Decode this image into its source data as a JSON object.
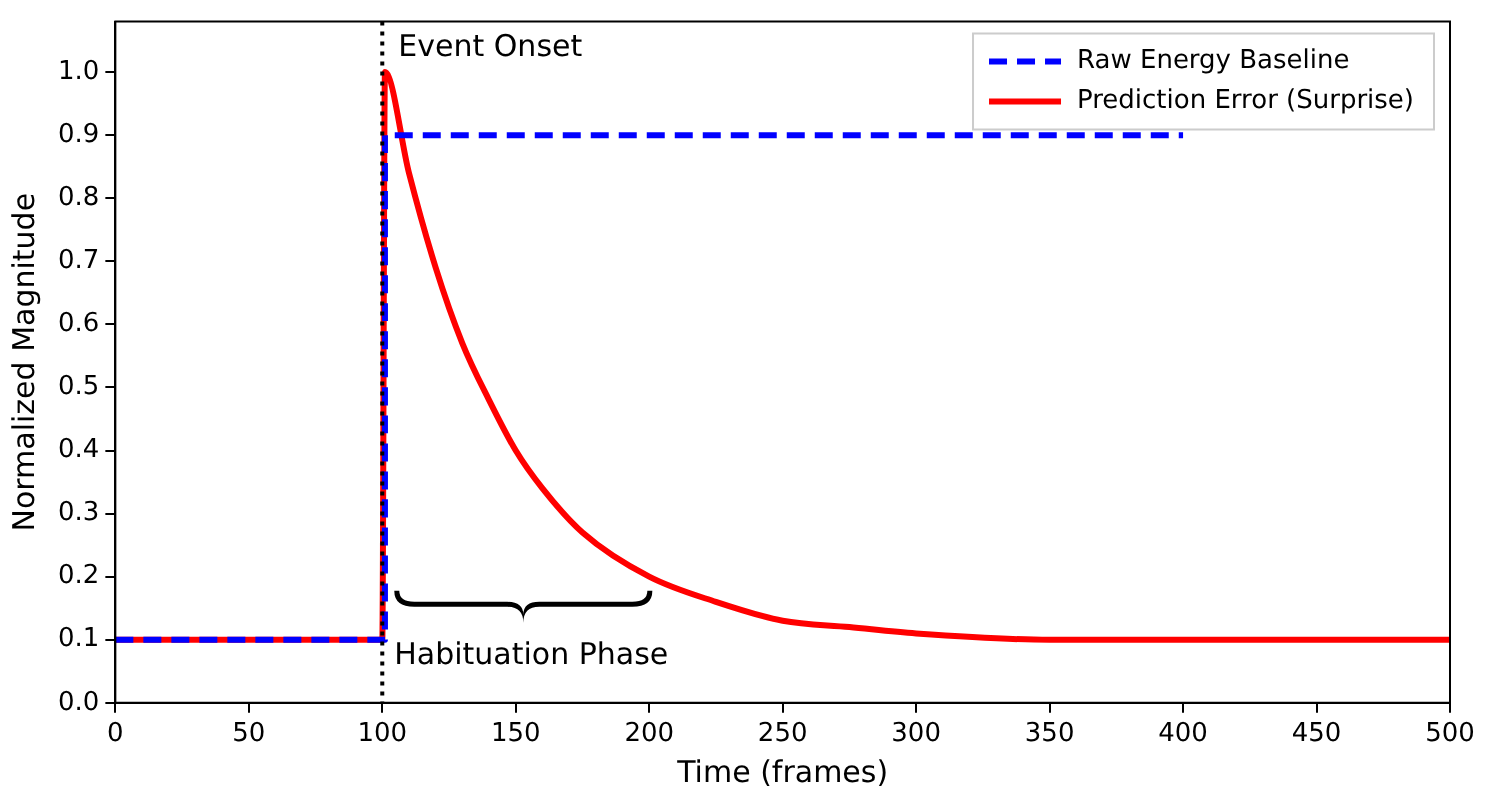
{
  "chart_data": {
    "type": "line",
    "xlabel": "Time (frames)",
    "ylabel": "Normalized Magnitude",
    "xlim": [
      0,
      500
    ],
    "ylim": [
      0,
      1.08
    ],
    "xticks": [
      0,
      50,
      100,
      150,
      200,
      250,
      300,
      350,
      400,
      450,
      500
    ],
    "yticks": [
      {
        "value": 0,
        "label": "0.0"
      },
      {
        "value": 0.1,
        "label": "0.1"
      },
      {
        "value": 0.2,
        "label": "0.2"
      },
      {
        "value": 0.3,
        "label": "0.3"
      },
      {
        "value": 0.4,
        "label": "0.4"
      },
      {
        "value": 0.5,
        "label": "0.5"
      },
      {
        "value": 0.6,
        "label": "0.6"
      },
      {
        "value": 0.7,
        "label": "0.7"
      },
      {
        "value": 0.8,
        "label": "0.8"
      },
      {
        "value": 0.9,
        "label": "0.9"
      },
      {
        "value": 1,
        "label": "1.0"
      }
    ],
    "series": [
      {
        "name": "Raw Energy Baseline",
        "color": "#0000ff",
        "line_style": "dashed",
        "x": [
          0,
          101,
          101,
          400
        ],
        "values": [
          0.1,
          0.1,
          0.9,
          0.9
        ]
      },
      {
        "name": "Prediction Error (Surprise)",
        "color": "#ff0000",
        "line_style": "solid",
        "x": [
          0,
          100,
          101,
          110,
          120,
          130,
          140,
          150,
          160,
          175,
          200,
          225,
          250,
          275,
          300,
          350,
          400,
          450,
          500
        ],
        "values": [
          0.1,
          0.1,
          1.0,
          0.84,
          0.69,
          0.57,
          0.48,
          0.4,
          0.34,
          0.27,
          0.2,
          0.16,
          0.13,
          0.12,
          0.11,
          0.1,
          0.1,
          0.1,
          0.1
        ]
      }
    ],
    "ref_lines": [
      {
        "axis": "x",
        "value": 100,
        "label": "Event Onset",
        "color": "#000000",
        "line_style": "dotted"
      }
    ],
    "annotations": [
      "Habituation Phase"
    ],
    "legend": "top right",
    "grid": false,
    "marker": "none"
  }
}
